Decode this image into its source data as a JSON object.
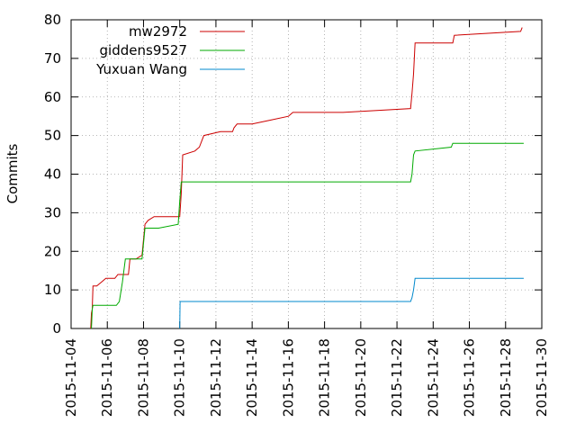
{
  "chart_data": {
    "type": "line",
    "ylabel": "Commits",
    "xlabel": "",
    "title": "",
    "x_axis": "date",
    "xlim": [
      "2015-11-04",
      "2015-11-30"
    ],
    "ylim": [
      0,
      80
    ],
    "grid": true,
    "legend_position": "top-right",
    "x_ticks": [
      "2015-11-04",
      "2015-11-06",
      "2015-11-08",
      "2015-11-10",
      "2015-11-12",
      "2015-11-14",
      "2015-11-16",
      "2015-11-18",
      "2015-11-20",
      "2015-11-22",
      "2015-11-24",
      "2015-11-26",
      "2015-11-28",
      "2015-11-30"
    ],
    "y_ticks": [
      "0",
      "10",
      "20",
      "30",
      "40",
      "50",
      "60",
      "70",
      "80"
    ],
    "series": [
      {
        "name": "mw2972",
        "color": "#cc0000",
        "points": [
          [
            "2015-11-05 02:00",
            0
          ],
          [
            "2015-11-05 03:00",
            4
          ],
          [
            "2015-11-05 04:00",
            5
          ],
          [
            "2015-11-05 05:00",
            11
          ],
          [
            "2015-11-05 10:00",
            11
          ],
          [
            "2015-11-05 16:00",
            12
          ],
          [
            "2015-11-05 22:00",
            13
          ],
          [
            "2015-11-06 10:00",
            13
          ],
          [
            "2015-11-06 14:00",
            14
          ],
          [
            "2015-11-07 04:00",
            14
          ],
          [
            "2015-11-07 06:00",
            18
          ],
          [
            "2015-11-07 14:00",
            18
          ],
          [
            "2015-11-07 22:00",
            19
          ],
          [
            "2015-11-08 02:00",
            27
          ],
          [
            "2015-11-08 06:00",
            28
          ],
          [
            "2015-11-08 14:00",
            29
          ],
          [
            "2015-11-10 00:00",
            29
          ],
          [
            "2015-11-10 02:00",
            35
          ],
          [
            "2015-11-10 04:00",
            45
          ],
          [
            "2015-11-10 20:00",
            46
          ],
          [
            "2015-11-11 02:00",
            47
          ],
          [
            "2015-11-11 06:00",
            49
          ],
          [
            "2015-11-11 08:00",
            50
          ],
          [
            "2015-11-12 06:00",
            51
          ],
          [
            "2015-11-12 22:00",
            51
          ],
          [
            "2015-11-13 00:00",
            52
          ],
          [
            "2015-11-13 04:00",
            53
          ],
          [
            "2015-11-14 00:00",
            53
          ],
          [
            "2015-11-15 00:00",
            54
          ],
          [
            "2015-11-16 00:00",
            55
          ],
          [
            "2015-11-16 06:00",
            56
          ],
          [
            "2015-11-16 18:00",
            56
          ],
          [
            "2015-11-17 00:00",
            56
          ],
          [
            "2015-11-19 00:00",
            56
          ],
          [
            "2015-11-22 18:00",
            57
          ],
          [
            "2015-11-22 20:00",
            61
          ],
          [
            "2015-11-22 22:00",
            66
          ],
          [
            "2015-11-23 00:00",
            74
          ],
          [
            "2015-11-25 02:00",
            74
          ],
          [
            "2015-11-25 04:00",
            76
          ],
          [
            "2015-11-28 20:00",
            77
          ],
          [
            "2015-11-28 22:00",
            78
          ]
        ]
      },
      {
        "name": "giddens9527",
        "color": "#00aa00",
        "points": [
          [
            "2015-11-05 03:00",
            0
          ],
          [
            "2015-11-05 04:00",
            5
          ],
          [
            "2015-11-05 05:00",
            6
          ],
          [
            "2015-11-06 12:00",
            6
          ],
          [
            "2015-11-06 16:00",
            7
          ],
          [
            "2015-11-06 20:00",
            12
          ],
          [
            "2015-11-07 00:00",
            18
          ],
          [
            "2015-11-07 22:00",
            18
          ],
          [
            "2015-11-08 02:00",
            26
          ],
          [
            "2015-11-08 20:00",
            26
          ],
          [
            "2015-11-09 22:00",
            27
          ],
          [
            "2015-11-10 00:00",
            33
          ],
          [
            "2015-11-10 02:00",
            38
          ],
          [
            "2015-11-22 18:00",
            38
          ],
          [
            "2015-11-22 20:00",
            40
          ],
          [
            "2015-11-22 22:00",
            45
          ],
          [
            "2015-11-23 00:00",
            46
          ],
          [
            "2015-11-25 00:00",
            47
          ],
          [
            "2015-11-25 02:00",
            48
          ],
          [
            "2015-11-29 00:00",
            48
          ]
        ]
      },
      {
        "name": "Yuxuan Wang",
        "color": "#0088cc",
        "points": [
          [
            "2015-11-10 00:00",
            0
          ],
          [
            "2015-11-10 00:30",
            7
          ],
          [
            "2015-11-22 18:00",
            7
          ],
          [
            "2015-11-22 20:00",
            8
          ],
          [
            "2015-11-22 22:00",
            10
          ],
          [
            "2015-11-23 00:00",
            13
          ],
          [
            "2015-11-29 00:00",
            13
          ]
        ]
      }
    ]
  }
}
